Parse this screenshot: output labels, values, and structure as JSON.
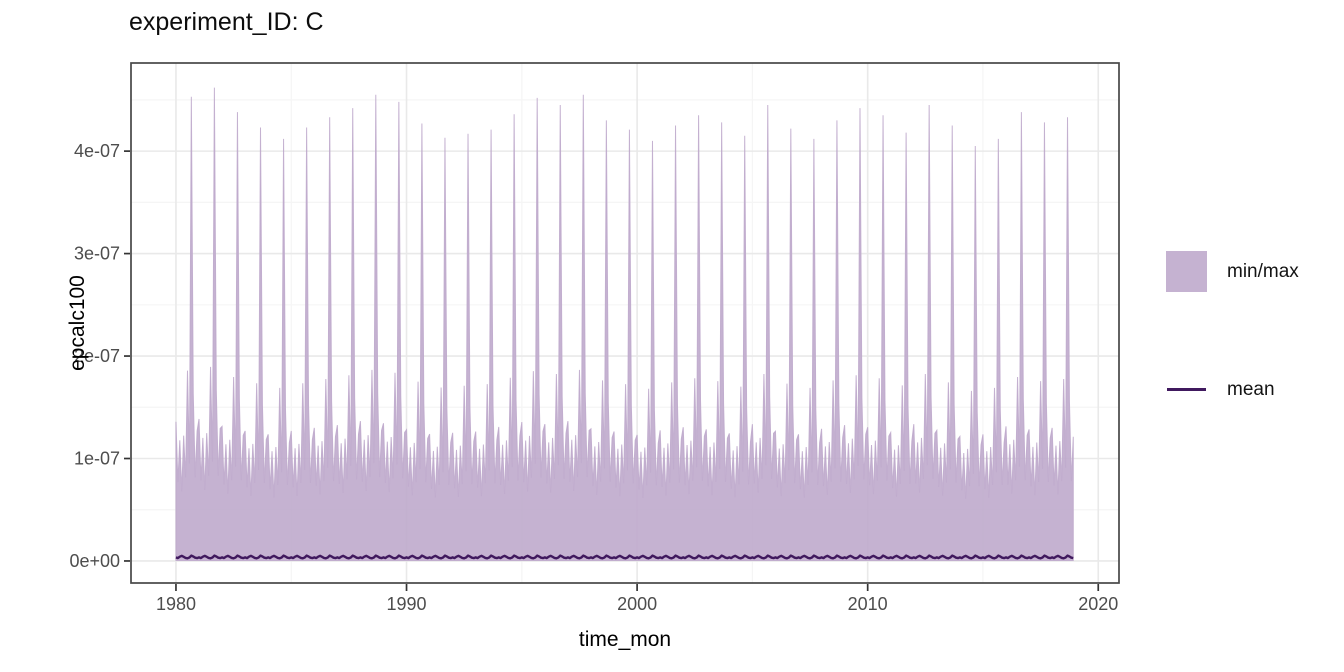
{
  "colors": {
    "ribbon_fill": "#c5b2d1",
    "ribbon_fill_base": "#bfaacc",
    "ribbon_opacity": 0.9,
    "mean_line": "#40195e",
    "panel_border": "#474747",
    "grid_major": "#e9e9e9",
    "grid_minor": "#f5f5f5",
    "tick_mark": "#333333",
    "tick_text": "#4d4d4d",
    "title_text": "#0d0d0d"
  },
  "chart_data": {
    "type": "area",
    "title": "experiment_ID: C",
    "xlabel": "time_mon",
    "ylabel": "epcalc100",
    "y_unit": "1e-07",
    "xlim": [
      1978.05,
      2020.9
    ],
    "ylim_1e7": [
      -0.215,
      4.86
    ],
    "x_ticks": [
      1980,
      1990,
      2000,
      2010,
      2020
    ],
    "x_minor_ticks": [
      1985,
      1995,
      2005,
      2015
    ],
    "y_ticks": [
      {
        "label": "0e+00",
        "value": 0
      },
      {
        "label": "1e-07",
        "value": 1
      },
      {
        "label": "2e-07",
        "value": 2
      },
      {
        "label": "3e-07",
        "value": 3
      },
      {
        "label": "4e-07",
        "value": 4
      }
    ],
    "y_minor_ticks": [
      0.5,
      1.5,
      2.5,
      3.5,
      4.5
    ],
    "grid": true,
    "legend_position": "right",
    "start_year": 1980,
    "end_year": 2018,
    "points_per_year": 12,
    "series": [
      {
        "name": "min/max",
        "kind": "ribbon",
        "annual_peak_max_1e7": [
          4.53,
          4.62,
          4.38,
          4.23,
          4.12,
          4.23,
          4.33,
          4.42,
          4.55,
          4.48,
          4.27,
          4.13,
          4.17,
          4.21,
          4.36,
          4.52,
          4.45,
          4.55,
          4.3,
          4.21,
          4.1,
          4.25,
          4.35,
          4.28,
          4.15,
          4.45,
          4.22,
          4.12,
          4.3,
          4.42,
          4.35,
          4.18,
          4.45,
          4.25,
          4.05,
          4.12,
          4.38,
          4.28,
          4.33
        ],
        "monthly_max_shape": [
          0.3,
          0.17,
          0.26,
          0.15,
          0.27,
          0.18,
          0.41,
          0.21,
          1.0,
          0.36,
          0.18,
          0.28
        ],
        "monthly_min_1e7": 0.004
      },
      {
        "name": "mean",
        "kind": "line",
        "monthly_mean_cycle_1e7": [
          0.035,
          0.028,
          0.042,
          0.05,
          0.04,
          0.03,
          0.026,
          0.034,
          0.052,
          0.044,
          0.032,
          0.028
        ]
      }
    ],
    "legend": [
      {
        "label": "min/max",
        "type": "fill"
      },
      {
        "label": "mean",
        "type": "line"
      }
    ]
  }
}
